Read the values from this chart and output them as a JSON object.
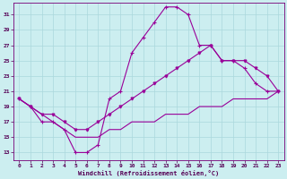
{
  "xlabel": "Windchill (Refroidissement éolien,°C)",
  "bg_color": "#cceef0",
  "grid_color": "#aad8dc",
  "line_color": "#990099",
  "xlim": [
    -0.5,
    23.5
  ],
  "ylim": [
    12,
    32.5
  ],
  "yticks": [
    13,
    15,
    17,
    19,
    21,
    23,
    25,
    27,
    29,
    31
  ],
  "xticks": [
    0,
    1,
    2,
    3,
    4,
    5,
    6,
    7,
    8,
    9,
    10,
    11,
    12,
    13,
    14,
    15,
    16,
    17,
    18,
    19,
    20,
    21,
    22,
    23
  ],
  "line1_x": [
    0,
    1,
    2,
    3,
    4,
    5,
    6,
    7,
    8,
    9,
    10,
    11,
    12,
    13,
    14,
    15,
    16,
    17,
    18,
    19,
    20,
    21,
    22,
    23
  ],
  "line1_y": [
    20,
    19,
    17,
    17,
    16,
    13,
    13,
    14,
    20,
    21,
    26,
    28,
    30,
    32,
    32,
    31,
    27,
    27,
    25,
    25,
    24,
    22,
    21,
    21
  ],
  "line2_x": [
    0,
    1,
    2,
    3,
    4,
    5,
    6,
    7,
    8,
    9,
    10,
    11,
    12,
    13,
    14,
    15,
    16,
    17,
    18,
    19,
    20,
    21,
    22,
    23
  ],
  "line2_y": [
    20,
    19,
    18,
    18,
    17,
    16,
    16,
    17,
    18,
    19,
    20,
    21,
    22,
    23,
    24,
    25,
    26,
    27,
    25,
    25,
    25,
    24,
    23,
    21
  ],
  "line3_x": [
    0,
    1,
    2,
    3,
    4,
    5,
    6,
    7,
    8,
    9,
    10,
    11,
    12,
    13,
    14,
    15,
    16,
    17,
    18,
    19,
    20,
    21,
    22,
    23
  ],
  "line3_y": [
    20,
    19,
    18,
    17,
    16,
    15,
    15,
    15,
    16,
    16,
    17,
    17,
    17,
    18,
    18,
    18,
    19,
    19,
    19,
    20,
    20,
    20,
    20,
    21
  ]
}
